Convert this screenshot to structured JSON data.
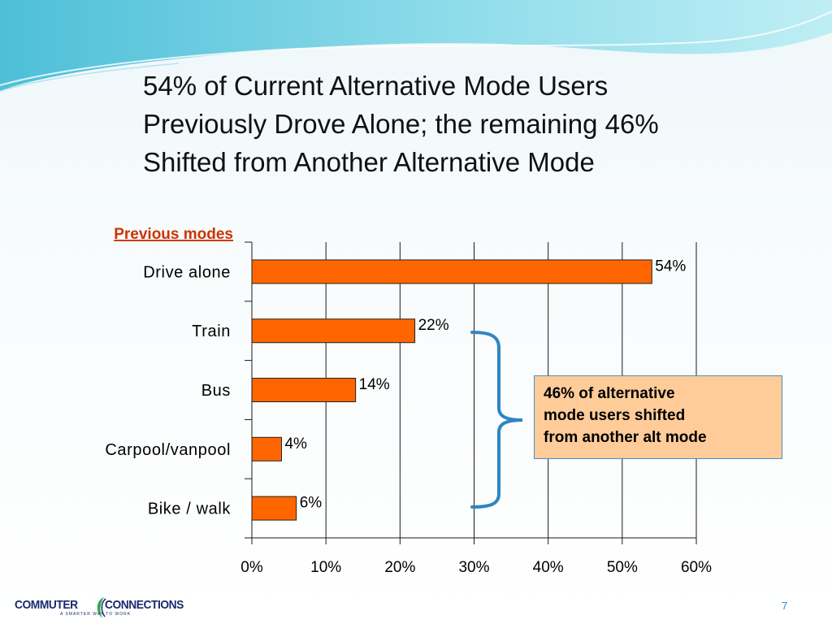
{
  "slide": {
    "title_lines": [
      "54% of Current Alternative Mode Users",
      "Previously Drove Alone; the remaining 46%",
      "Shifted from Another Alternative Mode"
    ],
    "page_number": "7"
  },
  "callout": {
    "lines": [
      "46% of alternative",
      "mode users shifted",
      "from another alt mode"
    ]
  },
  "logo": {
    "left_text": "COMMUTER",
    "right_text": "CONNECTIONS",
    "tagline": "A SMARTER WAY TO WORK"
  },
  "colors": {
    "bar_fill": "#ff6600",
    "bar_stroke": "#222222",
    "subtitle": "#cc3300",
    "brace": "#2e86c1",
    "callout_fill": "#ffcc99",
    "callout_border": "#4a90c2",
    "header_wave": "#5cc6dc"
  },
  "chart_data": {
    "type": "bar",
    "orientation": "horizontal",
    "subtitle": "Previous modes",
    "categories": [
      "Drive alone",
      "Train",
      "Bus",
      "Carpool/vanpool",
      "Bike / walk"
    ],
    "values": [
      54,
      22,
      14,
      4,
      6
    ],
    "data_labels": [
      "54%",
      "22%",
      "14%",
      "4%",
      "6%"
    ],
    "xlim": [
      0,
      60
    ],
    "xticks": [
      0,
      10,
      20,
      30,
      40,
      50,
      60
    ],
    "xtick_labels": [
      "0%",
      "10%",
      "20%",
      "30%",
      "40%",
      "50%",
      "60%"
    ],
    "grid": "vertical",
    "legend": "none",
    "annotation": {
      "type": "brace",
      "spans": [
        "Train",
        "Bus",
        "Carpool/vanpool",
        "Bike / walk"
      ]
    }
  }
}
